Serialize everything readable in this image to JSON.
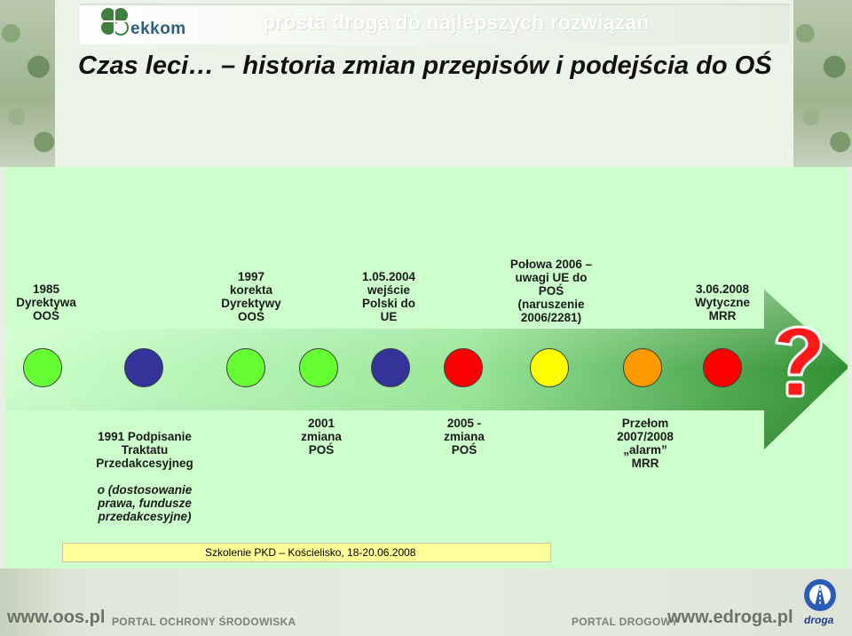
{
  "header": {
    "logo_text": "ekkom",
    "tagline": "prosta droga do najlepszych rozwiązań",
    "title": "Czas leci… – historia zmian przepisów i podejścia do OŚ"
  },
  "timeline": {
    "top_labels": [
      "1985\nDyrektywa\nOOŚ",
      "1997\nkorekta\nDyrektywy\nOOŚ",
      "1.05.2004\nwejście\nPolski do\nUE",
      "Połowa 2006 –\nuwagi UE do\nPOŚ\n(naruszenie\n2006/2281)",
      "3.06.2008\nWytyczne\nMRR"
    ],
    "bottom_labels": [
      "1991 Podpisanie\nTraktatu\nPrzedakcesyjneg",
      "2001\nzmiana\nPOŚ",
      "2005 -\nzmiana\nPOŚ",
      "Przełom\n2007/2008\n„alarm”\nMRR"
    ],
    "bottom_label_italic": "o (dostosowanie\nprawa, fundusze\nprzedakcesyjne)",
    "dot_colors": [
      "#66ff33",
      "#333399",
      "#66ff33",
      "#66ff33",
      "#333399",
      "#ff0000",
      "#ffff00",
      "#ff9900",
      "#ff0000"
    ],
    "question_mark_icon": "red-question-mark-icon"
  },
  "footer": {
    "event": "Szkolenie PKD – Kościelisko, 18-20.06.2008",
    "url_left": "www.oos.pl",
    "portal_left": "PORTAL OCHRONY ŚRODOWISKA",
    "portal_right": "PORTAL DROGOWY",
    "url_right": "www.edroga.pl",
    "droga_text": "droga"
  }
}
